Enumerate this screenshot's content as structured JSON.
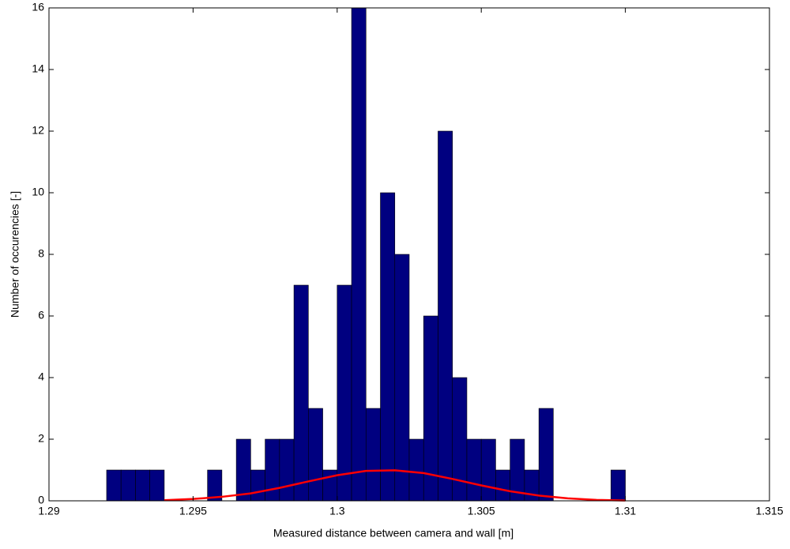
{
  "chart_data": {
    "type": "histogram",
    "xlabel": "Measured distance between camera and wall [m]",
    "ylabel": "Number of occurencies [-]",
    "bins": [
      1.292,
      1.2925,
      1.293,
      1.2935,
      1.294,
      1.2945,
      1.295,
      1.2955,
      1.296,
      1.2965,
      1.297,
      1.2975,
      1.298,
      1.2985,
      1.299,
      1.2995,
      1.3,
      1.3005,
      1.301,
      1.3015,
      1.302,
      1.3025,
      1.303,
      1.3035,
      1.304,
      1.3045,
      1.305,
      1.3055,
      1.306,
      1.3065,
      1.307,
      1.3075,
      1.308,
      1.3085,
      1.309,
      1.3095,
      1.31
    ],
    "values": [
      1,
      1,
      1,
      1,
      0,
      0,
      0,
      1,
      0,
      2,
      1,
      2,
      2,
      7,
      3,
      1,
      7,
      16,
      3,
      10,
      8,
      2,
      6,
      12,
      4,
      2,
      2,
      1,
      2,
      1,
      3,
      0,
      0,
      0,
      0,
      1
    ],
    "color": "#000080",
    "fit_curve": {
      "color": "#ff0000",
      "x": [
        1.294,
        1.295,
        1.296,
        1.297,
        1.298,
        1.299,
        1.3,
        1.301,
        1.302,
        1.303,
        1.304,
        1.305,
        1.306,
        1.307,
        1.308,
        1.309,
        1.31
      ],
      "values": [
        0.02,
        0.06,
        0.13,
        0.24,
        0.42,
        0.63,
        0.83,
        0.97,
        0.99,
        0.9,
        0.71,
        0.5,
        0.31,
        0.17,
        0.08,
        0.03,
        0.01
      ]
    },
    "xlim": [
      1.29,
      1.315
    ],
    "xticks": [
      1.29,
      1.295,
      1.3,
      1.305,
      1.31,
      1.315
    ],
    "ylim": [
      0,
      16
    ],
    "yticks": [
      0,
      2,
      4,
      6,
      8,
      10,
      12,
      14,
      16
    ]
  }
}
